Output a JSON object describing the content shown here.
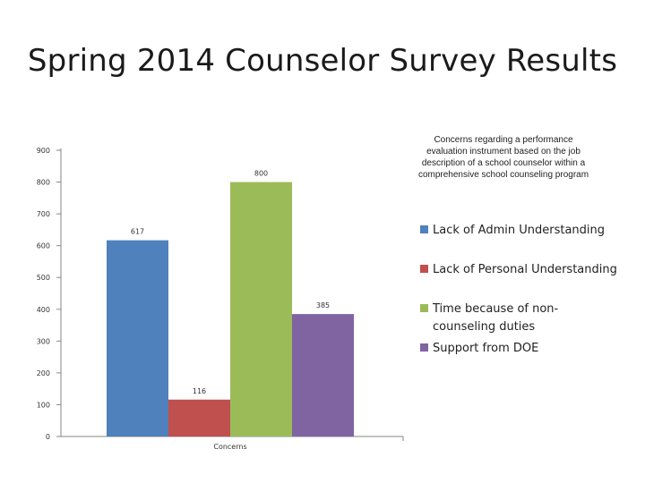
{
  "slide": {
    "title": "Spring 2014 Counselor Survey Results"
  },
  "chart_data": {
    "type": "bar",
    "title": "Concerns regarding a performance evaluation instrument based on the job description of a school counselor within a comprehensive school counseling program",
    "categories": [
      "Concerns"
    ],
    "series": [
      {
        "name": "Lack of Admin Understanding",
        "values": [
          617
        ],
        "color": "#4F81BD"
      },
      {
        "name": "Lack of Personal Understanding",
        "values": [
          116
        ],
        "color": "#C0504D"
      },
      {
        "name": "Time because of non-counseling duties",
        "values": [
          800
        ],
        "color": "#9BBB59"
      },
      {
        "name": "Support from DOE",
        "values": [
          385
        ],
        "color": "#8064A2"
      }
    ],
    "xlabel": "",
    "ylabel": "",
    "ylim": [
      0,
      900
    ],
    "yticks": [
      "0",
      "100",
      "200",
      "300",
      "400",
      "500",
      "600",
      "700",
      "800",
      "900"
    ],
    "data_labels": [
      "617",
      "116",
      "800",
      "385"
    ],
    "legend_position": "right",
    "grid": false
  },
  "legend_display": [
    "Lack of Admin Understanding",
    "Lack of Personal Understanding",
    "Time because of non-counseling duties",
    "Support from DOE"
  ]
}
